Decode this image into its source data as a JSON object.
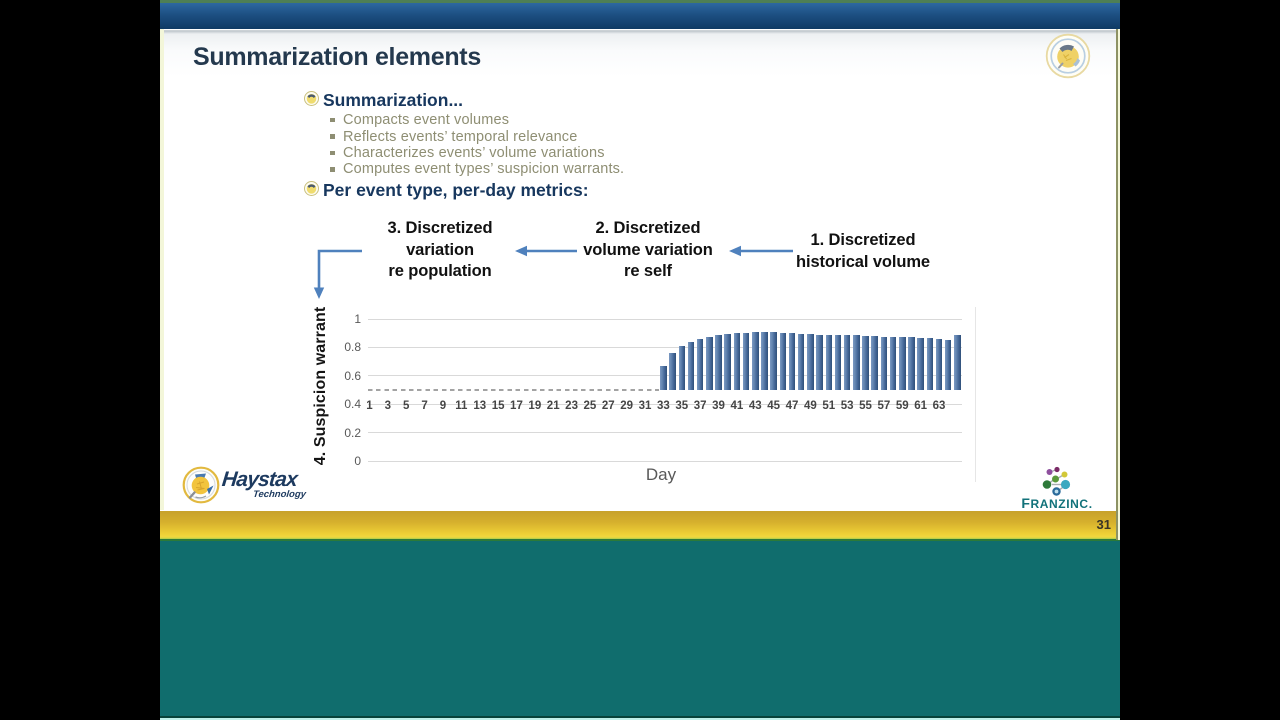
{
  "slide": {
    "title": "Summarization elements",
    "page_number": "31",
    "bullet1": {
      "label": "Summarization...",
      "items": [
        "Compacts event volumes",
        "Reflects events’ temporal relevance",
        "Characterizes events’ volume variations",
        "Computes event types’ suspicion warrants."
      ]
    },
    "bullet2": {
      "label": "Per event type, per-day metrics:"
    }
  },
  "diagram": {
    "step3": {
      "line1": "3. Discretized",
      "line2": "variation",
      "line3": "re population"
    },
    "step2": {
      "line1": "2. Discretized",
      "line2": "volume variation",
      "line3": "re self"
    },
    "step1": {
      "line1": "1. Discretized",
      "line2": "historical volume"
    },
    "arrow_color": "#4f81bd"
  },
  "chart_data": {
    "type": "bar",
    "title": "",
    "xlabel": "Day",
    "ylabel": "4. Suspicion warrant",
    "ylim": [
      0,
      1
    ],
    "yticks": [
      0,
      0.2,
      0.4,
      0.6,
      0.8,
      1
    ],
    "ytick_labels": [
      "0",
      "0.2",
      "0.4",
      "0.6",
      "0.8",
      "1"
    ],
    "xtick_labels": [
      1,
      3,
      5,
      7,
      9,
      11,
      13,
      15,
      17,
      19,
      21,
      23,
      25,
      27,
      29,
      31,
      33,
      35,
      37,
      39,
      41,
      43,
      45,
      47,
      49,
      51,
      53,
      55,
      57,
      59,
      61,
      63
    ],
    "grid": true,
    "baseline": {
      "value": 0.5,
      "from_day": 1,
      "to_day": 32,
      "style": "dashed"
    },
    "bars": {
      "start_day": 33,
      "days": [
        33,
        34,
        35,
        36,
        37,
        38,
        39,
        40,
        41,
        42,
        43,
        44,
        45,
        46,
        47,
        48,
        49,
        50,
        51,
        52,
        53,
        54,
        55,
        56,
        57,
        58,
        59,
        60,
        61,
        62,
        63,
        64,
        65
      ],
      "values": [
        0.67,
        0.76,
        0.81,
        0.84,
        0.86,
        0.875,
        0.885,
        0.895,
        0.9,
        0.9,
        0.905,
        0.905,
        0.905,
        0.9,
        0.9,
        0.895,
        0.895,
        0.89,
        0.89,
        0.89,
        0.885,
        0.885,
        0.88,
        0.88,
        0.875,
        0.875,
        0.87,
        0.87,
        0.865,
        0.865,
        0.86,
        0.855,
        0.885
      ]
    },
    "bar_color": "#4a6d9e"
  },
  "logos": {
    "haystax": {
      "name": "Haystax",
      "sub": "Technology"
    },
    "franz": {
      "name_start": "F",
      "name_rest": "RANZ",
      "name_inc": "INC."
    }
  },
  "colors": {
    "top_bar_blue": "#1d4f82",
    "accent_yellow": "#eecf36",
    "accent_teal": "#106d6d",
    "title_blue": "#24394e",
    "bullet_blue": "#17375e",
    "sub_bullet_olive": "#8e8e73",
    "arrow_blue": "#4f81bd",
    "bar_blue": "#4a6d9e"
  }
}
